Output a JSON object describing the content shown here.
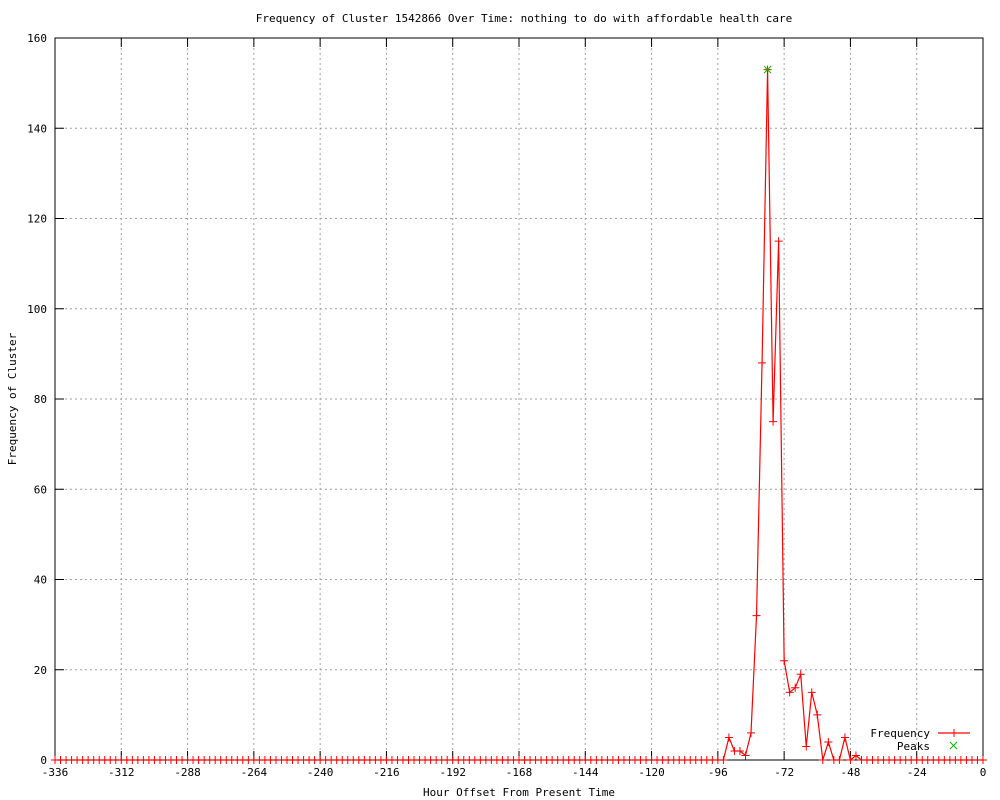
{
  "chart_data": {
    "type": "line",
    "title": "Frequency of Cluster 1542866 Over Time: nothing to do with affordable health care",
    "xlabel": "Hour Offset From Present Time",
    "ylabel": "Frequency of Cluster",
    "xlim": [
      -336,
      0
    ],
    "ylim": [
      0,
      160
    ],
    "xticks": [
      -336,
      -312,
      -288,
      -264,
      -240,
      -216,
      -192,
      -168,
      -144,
      -120,
      -96,
      -72,
      -48,
      -24,
      0
    ],
    "yticks": [
      0,
      20,
      40,
      60,
      80,
      100,
      120,
      140,
      160
    ],
    "grid": true,
    "legend_placement": "bottom-right",
    "x_step_hours": 2,
    "series": [
      {
        "name": "Frequency",
        "color": "#ff0000",
        "nonzero_points": [
          [
            -92,
            5
          ],
          [
            -90,
            2
          ],
          [
            -88,
            2
          ],
          [
            -86,
            1
          ],
          [
            -84,
            6
          ],
          [
            -82,
            32
          ],
          [
            -80,
            88
          ],
          [
            -78,
            153
          ],
          [
            -76,
            75
          ],
          [
            -74,
            115
          ],
          [
            -72,
            22
          ],
          [
            -70,
            15
          ],
          [
            -68,
            16
          ],
          [
            -66,
            19
          ],
          [
            -64,
            3
          ],
          [
            -62,
            15
          ],
          [
            -60,
            10
          ],
          [
            -56,
            4
          ],
          [
            -50,
            5
          ],
          [
            -46,
            1
          ]
        ]
      },
      {
        "name": "Peaks",
        "color": "#00c000",
        "points": [
          [
            -78,
            153
          ]
        ]
      }
    ]
  }
}
